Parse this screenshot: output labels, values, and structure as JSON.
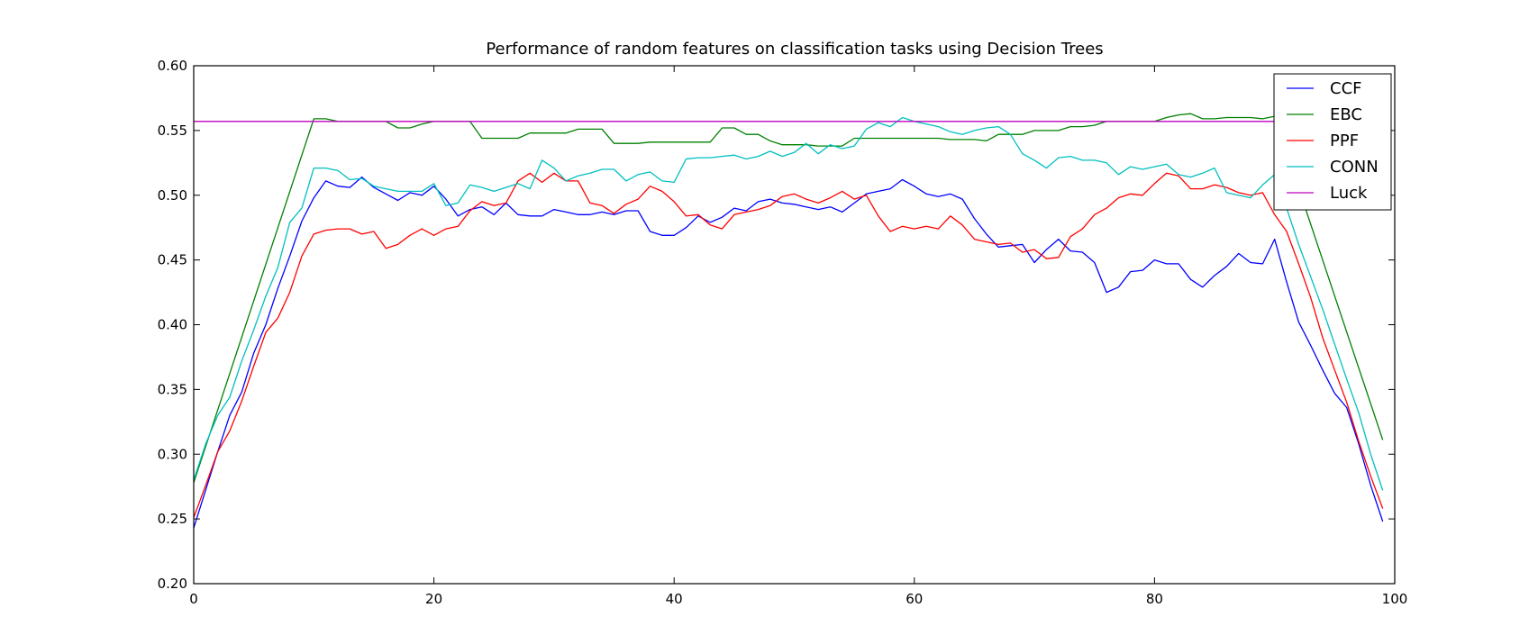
{
  "chart_data": {
    "type": "line",
    "title": "Performance of random features on classification tasks using Decision Trees",
    "xlabel": "",
    "ylabel": "",
    "xlim": [
      0,
      100
    ],
    "ylim": [
      0.2,
      0.6
    ],
    "xticks": [
      0,
      20,
      40,
      60,
      80,
      100
    ],
    "yticks": [
      0.2,
      0.25,
      0.3,
      0.35,
      0.4,
      0.45,
      0.5,
      0.55,
      0.6
    ],
    "ytick_labels": [
      "0.20",
      "0.25",
      "0.30",
      "0.35",
      "0.40",
      "0.45",
      "0.50",
      "0.55",
      "0.60"
    ],
    "xtick_labels": [
      "0",
      "20",
      "40",
      "60",
      "80",
      "100"
    ],
    "legend_position": "top-right",
    "grid": false,
    "series": [
      {
        "name": "CCF",
        "color": "#0000ff",
        "x": [
          0,
          2,
          3,
          4,
          5,
          6,
          7,
          8,
          9,
          10,
          11,
          12,
          13,
          14,
          15,
          16,
          17,
          18,
          19,
          20,
          21,
          22,
          23,
          24,
          25,
          26,
          27,
          28,
          29,
          30,
          31,
          32,
          33,
          34,
          35,
          36,
          37,
          38,
          39,
          40,
          41,
          42,
          43,
          44,
          45,
          46,
          47,
          48,
          49,
          50,
          51,
          52,
          53,
          54,
          55,
          56,
          57,
          58,
          59,
          60,
          61,
          62,
          63,
          64,
          65,
          66,
          67,
          68,
          69,
          70,
          71,
          72,
          73,
          74,
          75,
          76,
          77,
          78,
          79,
          80,
          81,
          82,
          83,
          84,
          85,
          86,
          87,
          88,
          89,
          90,
          91,
          92,
          93,
          94,
          95,
          96,
          97,
          98,
          99
        ],
        "y": [
          0.243,
          0.302,
          0.33,
          0.348,
          0.378,
          0.4,
          0.428,
          0.453,
          0.48,
          0.498,
          0.511,
          0.507,
          0.506,
          0.514,
          0.506,
          0.501,
          0.496,
          0.502,
          0.5,
          0.507,
          0.497,
          0.484,
          0.489,
          0.491,
          0.485,
          0.494,
          0.485,
          0.484,
          0.484,
          0.489,
          0.487,
          0.485,
          0.485,
          0.487,
          0.485,
          0.488,
          0.488,
          0.472,
          0.469,
          0.469,
          0.475,
          0.484,
          0.479,
          0.483,
          0.49,
          0.488,
          0.495,
          0.497,
          0.494,
          0.493,
          0.491,
          0.489,
          0.491,
          0.487,
          0.494,
          0.501,
          0.503,
          0.505,
          0.512,
          0.507,
          0.501,
          0.499,
          0.501,
          0.497,
          0.482,
          0.47,
          0.46,
          0.461,
          0.462,
          0.448,
          0.458,
          0.466,
          0.457,
          0.456,
          0.448,
          0.425,
          0.429,
          0.441,
          0.442,
          0.45,
          0.447,
          0.447,
          0.435,
          0.429,
          0.438,
          0.445,
          0.455,
          0.448,
          0.447,
          0.466,
          0.433,
          0.402,
          0.384,
          0.365,
          0.347,
          0.336,
          0.308,
          0.276,
          0.248
        ]
      },
      {
        "name": "EBC",
        "color": "#008000",
        "x": [
          0,
          10,
          11,
          12,
          13,
          14,
          15,
          16,
          17,
          18,
          19,
          20,
          21,
          22,
          23,
          24,
          25,
          26,
          27,
          28,
          29,
          30,
          31,
          32,
          33,
          34,
          35,
          36,
          37,
          38,
          39,
          40,
          41,
          42,
          43,
          44,
          45,
          46,
          47,
          48,
          49,
          50,
          51,
          52,
          53,
          54,
          55,
          56,
          57,
          58,
          59,
          60,
          61,
          62,
          63,
          64,
          65,
          66,
          67,
          68,
          69,
          70,
          71,
          72,
          73,
          74,
          75,
          76,
          77,
          78,
          79,
          80,
          81,
          82,
          83,
          84,
          85,
          86,
          87,
          88,
          89,
          90,
          99
        ],
        "y": [
          0.278,
          0.559,
          0.559,
          0.557,
          0.557,
          0.557,
          0.557,
          0.557,
          0.552,
          0.552,
          0.555,
          0.557,
          0.557,
          0.557,
          0.557,
          0.544,
          0.544,
          0.544,
          0.544,
          0.548,
          0.548,
          0.548,
          0.548,
          0.551,
          0.551,
          0.551,
          0.54,
          0.54,
          0.54,
          0.541,
          0.541,
          0.541,
          0.541,
          0.541,
          0.541,
          0.552,
          0.552,
          0.547,
          0.547,
          0.542,
          0.539,
          0.539,
          0.539,
          0.538,
          0.538,
          0.538,
          0.544,
          0.544,
          0.544,
          0.544,
          0.544,
          0.544,
          0.544,
          0.544,
          0.543,
          0.543,
          0.543,
          0.542,
          0.547,
          0.547,
          0.547,
          0.55,
          0.55,
          0.55,
          0.553,
          0.553,
          0.554,
          0.557,
          0.557,
          0.557,
          0.557,
          0.557,
          0.56,
          0.562,
          0.563,
          0.559,
          0.559,
          0.56,
          0.56,
          0.56,
          0.559,
          0.561,
          0.311
        ]
      },
      {
        "name": "PPF",
        "color": "#ff0000",
        "x": [
          0,
          1,
          2,
          3,
          4,
          5,
          6,
          7,
          8,
          9,
          10,
          11,
          12,
          13,
          14,
          15,
          16,
          17,
          18,
          19,
          20,
          21,
          22,
          23,
          24,
          25,
          26,
          27,
          28,
          29,
          30,
          31,
          32,
          33,
          34,
          35,
          36,
          37,
          38,
          39,
          40,
          41,
          42,
          43,
          44,
          45,
          46,
          47,
          48,
          49,
          50,
          51,
          52,
          53,
          54,
          55,
          56,
          57,
          58,
          59,
          60,
          61,
          62,
          63,
          64,
          65,
          66,
          67,
          68,
          69,
          70,
          71,
          72,
          73,
          74,
          75,
          76,
          77,
          78,
          79,
          80,
          81,
          82,
          83,
          84,
          85,
          86,
          87,
          88,
          89,
          90,
          91,
          92,
          93,
          94,
          95,
          96,
          97,
          98,
          99
        ],
        "y": [
          0.251,
          0.276,
          0.302,
          0.318,
          0.341,
          0.368,
          0.394,
          0.405,
          0.425,
          0.453,
          0.47,
          0.473,
          0.474,
          0.474,
          0.47,
          0.472,
          0.459,
          0.462,
          0.469,
          0.474,
          0.469,
          0.474,
          0.476,
          0.488,
          0.495,
          0.492,
          0.494,
          0.511,
          0.517,
          0.51,
          0.517,
          0.511,
          0.511,
          0.494,
          0.492,
          0.486,
          0.493,
          0.497,
          0.507,
          0.503,
          0.495,
          0.484,
          0.485,
          0.477,
          0.474,
          0.485,
          0.487,
          0.489,
          0.492,
          0.499,
          0.501,
          0.497,
          0.494,
          0.498,
          0.503,
          0.497,
          0.5,
          0.484,
          0.472,
          0.476,
          0.474,
          0.476,
          0.474,
          0.484,
          0.477,
          0.466,
          0.464,
          0.462,
          0.463,
          0.456,
          0.458,
          0.451,
          0.452,
          0.468,
          0.474,
          0.485,
          0.49,
          0.498,
          0.501,
          0.5,
          0.509,
          0.517,
          0.515,
          0.505,
          0.505,
          0.508,
          0.506,
          0.502,
          0.5,
          0.502,
          0.485,
          0.472,
          0.447,
          0.421,
          0.39,
          0.365,
          0.34,
          0.31,
          0.283,
          0.258
        ]
      },
      {
        "name": "CONN",
        "color": "#00bfbf",
        "x": [
          0,
          1,
          2,
          3,
          4,
          5,
          6,
          7,
          8,
          9,
          10,
          11,
          12,
          13,
          14,
          15,
          16,
          17,
          18,
          19,
          20,
          21,
          22,
          23,
          24,
          25,
          26,
          27,
          28,
          29,
          30,
          31,
          32,
          33,
          34,
          35,
          36,
          37,
          38,
          39,
          40,
          41,
          42,
          43,
          44,
          45,
          46,
          47,
          48,
          49,
          50,
          51,
          52,
          53,
          54,
          55,
          56,
          57,
          58,
          59,
          60,
          61,
          62,
          63,
          64,
          65,
          66,
          67,
          68,
          69,
          70,
          71,
          72,
          73,
          74,
          75,
          76,
          77,
          78,
          79,
          80,
          81,
          82,
          83,
          84,
          85,
          86,
          87,
          88,
          89,
          90,
          91,
          92,
          93,
          94,
          95,
          96,
          97,
          98,
          99
        ],
        "y": [
          0.28,
          0.308,
          0.33,
          0.344,
          0.372,
          0.396,
          0.422,
          0.444,
          0.479,
          0.49,
          0.521,
          0.521,
          0.519,
          0.512,
          0.513,
          0.507,
          0.505,
          0.503,
          0.503,
          0.503,
          0.509,
          0.492,
          0.494,
          0.508,
          0.506,
          0.503,
          0.506,
          0.509,
          0.505,
          0.527,
          0.521,
          0.511,
          0.515,
          0.517,
          0.52,
          0.52,
          0.511,
          0.516,
          0.518,
          0.511,
          0.51,
          0.528,
          0.529,
          0.529,
          0.53,
          0.531,
          0.528,
          0.53,
          0.534,
          0.53,
          0.533,
          0.54,
          0.532,
          0.539,
          0.536,
          0.538,
          0.551,
          0.556,
          0.553,
          0.56,
          0.557,
          0.555,
          0.553,
          0.549,
          0.547,
          0.55,
          0.552,
          0.553,
          0.547,
          0.532,
          0.527,
          0.521,
          0.529,
          0.53,
          0.527,
          0.527,
          0.525,
          0.516,
          0.522,
          0.52,
          0.522,
          0.524,
          0.516,
          0.514,
          0.517,
          0.521,
          0.502,
          0.5,
          0.498,
          0.508,
          0.516,
          0.49,
          0.462,
          0.437,
          0.412,
          0.385,
          0.358,
          0.332,
          0.3,
          0.272
        ]
      },
      {
        "name": "Luck",
        "color": "#bf00bf",
        "x": [
          0,
          99
        ],
        "y": [
          0.557,
          0.557
        ]
      }
    ]
  }
}
